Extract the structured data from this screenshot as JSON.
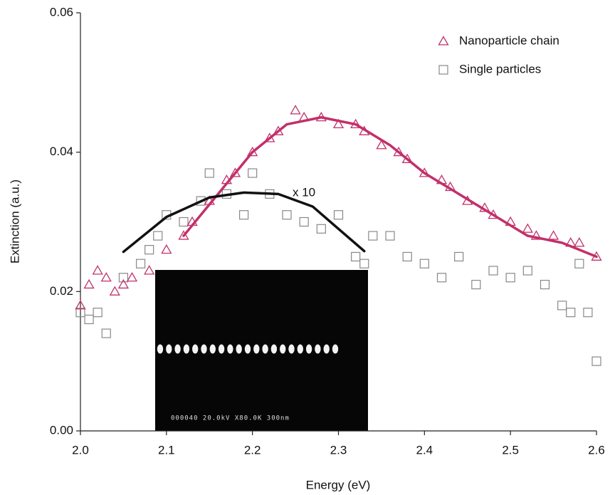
{
  "chart_data": {
    "type": "scatter",
    "xlabel": "Energy (eV)",
    "ylabel": "Extinction (a.u.)",
    "xlim": [
      2.0,
      2.6
    ],
    "ylim": [
      0,
      0.06
    ],
    "xticks": [
      {
        "value": 2.0,
        "label": "2.0"
      },
      2.1,
      2.2,
      2.3,
      2.4,
      2.5,
      2.6
    ],
    "yticks": [
      {
        "value": 0,
        "label": "0.00"
      },
      0.02,
      0.04,
      0.06
    ],
    "legend": "upper right",
    "series": [
      {
        "name": "Nanoparticle chain",
        "color": "#c2306a",
        "marker": "triangle",
        "x": [
          2.0,
          2.01,
          2.02,
          2.03,
          2.04,
          2.05,
          2.06,
          2.08,
          2.1,
          2.12,
          2.13,
          2.15,
          2.17,
          2.18,
          2.2,
          2.22,
          2.23,
          2.25,
          2.26,
          2.28,
          2.3,
          2.32,
          2.33,
          2.35,
          2.37,
          2.38,
          2.4,
          2.42,
          2.43,
          2.45,
          2.47,
          2.48,
          2.5,
          2.52,
          2.53,
          2.55,
          2.57,
          2.58,
          2.6
        ],
        "values": [
          0.018,
          0.021,
          0.023,
          0.022,
          0.02,
          0.021,
          0.022,
          0.023,
          0.026,
          0.028,
          0.03,
          0.033,
          0.036,
          0.037,
          0.04,
          0.042,
          0.043,
          0.046,
          0.045,
          0.045,
          0.044,
          0.044,
          0.043,
          0.041,
          0.04,
          0.039,
          0.037,
          0.036,
          0.035,
          0.033,
          0.032,
          0.031,
          0.03,
          0.029,
          0.028,
          0.028,
          0.027,
          0.027,
          0.025
        ]
      },
      {
        "name": "Single particles",
        "color": "#888888",
        "marker": "square",
        "x": [
          2.0,
          2.01,
          2.02,
          2.03,
          2.05,
          2.07,
          2.08,
          2.09,
          2.1,
          2.12,
          2.14,
          2.15,
          2.17,
          2.19,
          2.2,
          2.22,
          2.24,
          2.26,
          2.28,
          2.3,
          2.32,
          2.33,
          2.34,
          2.36,
          2.38,
          2.4,
          2.42,
          2.44,
          2.46,
          2.48,
          2.5,
          2.52,
          2.54,
          2.56,
          2.57,
          2.58,
          2.59,
          2.6
        ],
        "values": [
          0.017,
          0.016,
          0.017,
          0.014,
          0.022,
          0.024,
          0.026,
          0.028,
          0.031,
          0.03,
          0.033,
          0.037,
          0.034,
          0.031,
          0.037,
          0.034,
          0.031,
          0.03,
          0.029,
          0.031,
          0.025,
          0.024,
          0.028,
          0.028,
          0.025,
          0.024,
          0.022,
          0.025,
          0.021,
          0.023,
          0.022,
          0.023,
          0.021,
          0.018,
          0.017,
          0.024,
          0.017,
          0.01
        ]
      }
    ],
    "fit_lines": [
      {
        "color": "#c2306a",
        "x": [
          2.12,
          2.16,
          2.2,
          2.24,
          2.28,
          2.32,
          2.36,
          2.4,
          2.44,
          2.48,
          2.52,
          2.56,
          2.6
        ],
        "values": [
          0.028,
          0.034,
          0.04,
          0.044,
          0.045,
          0.044,
          0.041,
          0.037,
          0.034,
          0.031,
          0.028,
          0.027,
          0.025
        ]
      },
      {
        "color": "#111111",
        "x": [
          2.05,
          2.1,
          2.15,
          2.19,
          2.23,
          2.27,
          2.3,
          2.33
        ],
        "values": [
          0.0257,
          0.0307,
          0.0335,
          0.0342,
          0.034,
          0.0322,
          0.029,
          0.0258
        ]
      }
    ],
    "annotation": "x 10",
    "inset_caption": "000040 20.0kV X80.0K 300nm"
  }
}
